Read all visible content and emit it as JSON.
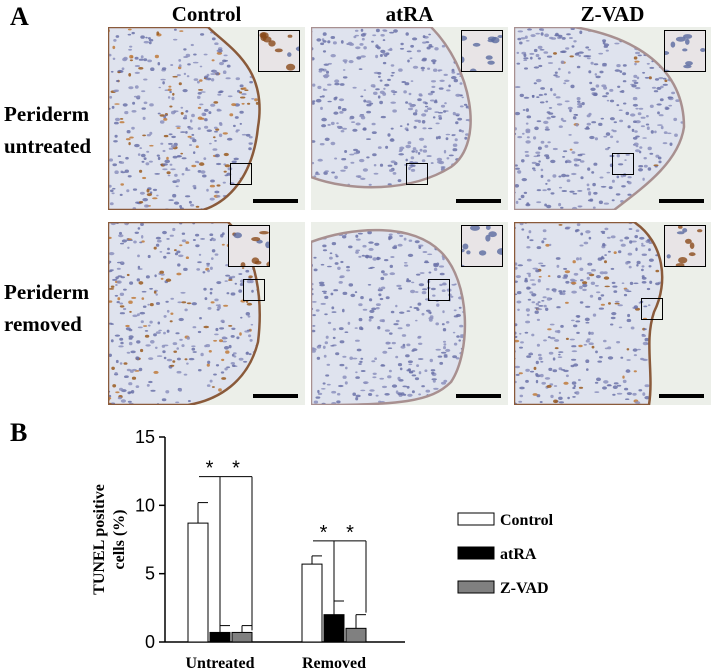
{
  "figure": {
    "panel_a_label": "A",
    "panel_b_label": "B",
    "columns": [
      "Control",
      "atRA",
      "Z-VAD"
    ],
    "rows": [
      {
        "line1": "Periderm",
        "line2": "untreated"
      },
      {
        "line1": "Periderm",
        "line2": "removed"
      }
    ]
  },
  "chart_data": {
    "type": "bar",
    "categories": [
      "Untreated",
      "Removed"
    ],
    "series": [
      {
        "name": "Control",
        "values": [
          8.7,
          5.7
        ],
        "errors": [
          1.5,
          0.6
        ],
        "color": "#ffffff"
      },
      {
        "name": "atRA",
        "values": [
          0.7,
          2.0
        ],
        "errors": [
          0.5,
          1.0
        ],
        "color": "#000000"
      },
      {
        "name": "Z-VAD",
        "values": [
          0.7,
          1.0
        ],
        "errors": [
          0.5,
          1.0
        ],
        "color": "#808080"
      }
    ],
    "ylabel_line1": "TUNEL positive",
    "ylabel_line2": "cells (%)",
    "ylim": [
      0,
      15
    ],
    "yticks": [
      "0",
      "5",
      "10",
      "15"
    ],
    "significance_marker": "*",
    "legend_position": "right",
    "grid": false
  }
}
